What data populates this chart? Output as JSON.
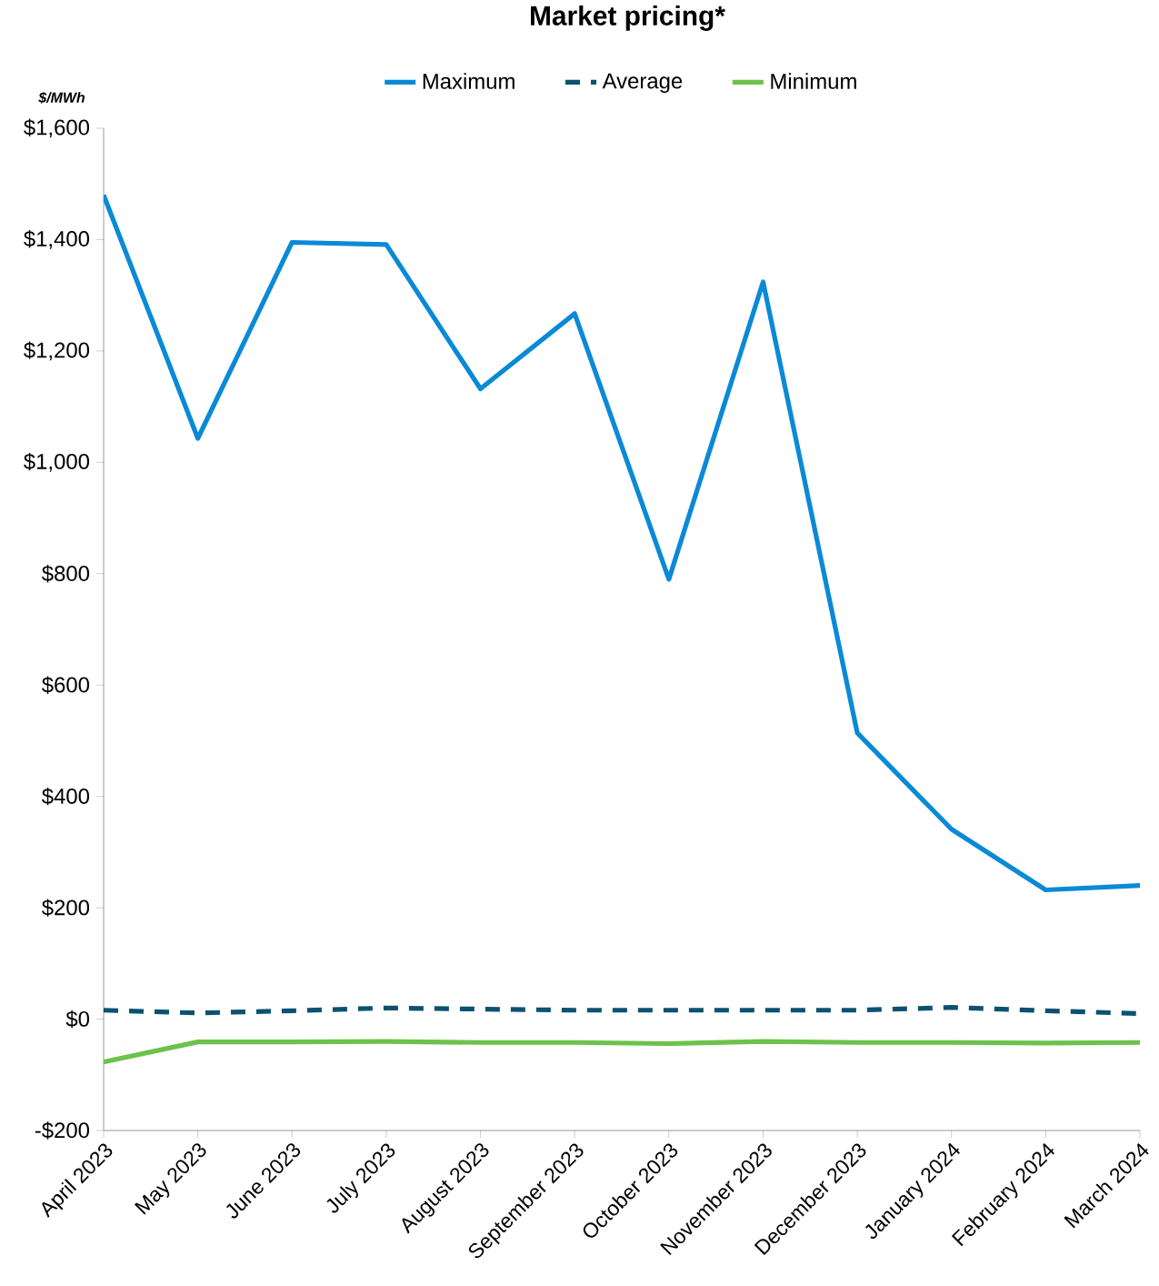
{
  "chart_data": {
    "type": "line",
    "title": "Market pricing*",
    "ylabel": "$/MWh",
    "categories": [
      "April 2023",
      "May 2023",
      "June 2023",
      "July 2023",
      "August 2023",
      "September 2023",
      "October 2023",
      "November 2023",
      "December 2023",
      "January 2024",
      "February 2024",
      "March 2024"
    ],
    "series": [
      {
        "name": "Maximum",
        "color": "#0a8ad6",
        "line_style": "solid",
        "values": [
          1480,
          1043,
          1395,
          1391,
          1132,
          1267,
          790,
          1324,
          514,
          341,
          232,
          240
        ]
      },
      {
        "name": "Average",
        "color": "#0b5270",
        "line_style": "dashed",
        "values": [
          16,
          11,
          15,
          20,
          18,
          16,
          16,
          16,
          16,
          21,
          15,
          10
        ]
      },
      {
        "name": "Minimum",
        "color": "#6cc24a",
        "line_style": "solid",
        "values": [
          -77,
          -41,
          -41,
          -40,
          -42,
          -42,
          -44,
          -40,
          -42,
          -42,
          -43,
          -42
        ]
      }
    ],
    "ylim": [
      -200,
      1600
    ],
    "yticks": [
      {
        "value": -200,
        "label": "-$200"
      },
      {
        "value": 0,
        "label": "$0"
      },
      {
        "value": 200,
        "label": "$200"
      },
      {
        "value": 400,
        "label": "$400"
      },
      {
        "value": 600,
        "label": "$600"
      },
      {
        "value": 800,
        "label": "$800"
      },
      {
        "value": 1000,
        "label": "$1,000"
      },
      {
        "value": 1200,
        "label": "$1,200"
      },
      {
        "value": 1400,
        "label": "$1,400"
      },
      {
        "value": 1600,
        "label": "$1,600"
      }
    ],
    "grid": false,
    "legend": "top",
    "marker": "none"
  }
}
